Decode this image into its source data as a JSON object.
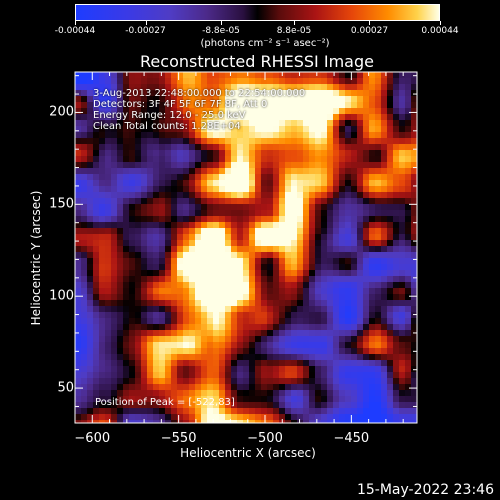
{
  "colorbar": {
    "tick_labels": [
      "-0.00044",
      "-0.00027",
      "-8.8e-05",
      "8.8e-05",
      "0.00027",
      "0.00044"
    ],
    "tick_values": [
      -0.00044,
      -0.00027,
      -8.8e-05,
      8.8e-05,
      0.00027,
      0.00044
    ],
    "range": [
      -0.00044,
      0.00044
    ],
    "unit_label": "(photons cm⁻² s⁻¹ asec⁻²)"
  },
  "chart_data": {
    "type": "heatmap",
    "title": "Reconstructed RHESSI Image",
    "xlabel": "Heliocentric X (arcsec)",
    "ylabel": "Heliocentric Y (arcsec)",
    "xlim": [
      -610,
      -412
    ],
    "ylim": [
      31,
      222
    ],
    "x_ticks": [
      -600,
      -550,
      -500,
      -450
    ],
    "y_ticks": [
      50,
      100,
      150,
      200
    ],
    "info": {
      "time_range": "3-Aug-2013 22:48:00.000 to 22:54:00.000",
      "detectors": "Detectors: 3F 4F 5F 6F 7F 8F, Att 0",
      "energy_range": "Energy Range: 12.0 - 25.0 keV",
      "algorithm": "Clean     Total counts: 1.28E+04"
    },
    "peak_label": "Position of Peak = [-522,83]",
    "peak": [
      -522,
      83
    ],
    "grid": false
  },
  "colors": {
    "background": "#000000",
    "frame": "#ffffff"
  },
  "timestamp": "15-May-2022 23:46"
}
